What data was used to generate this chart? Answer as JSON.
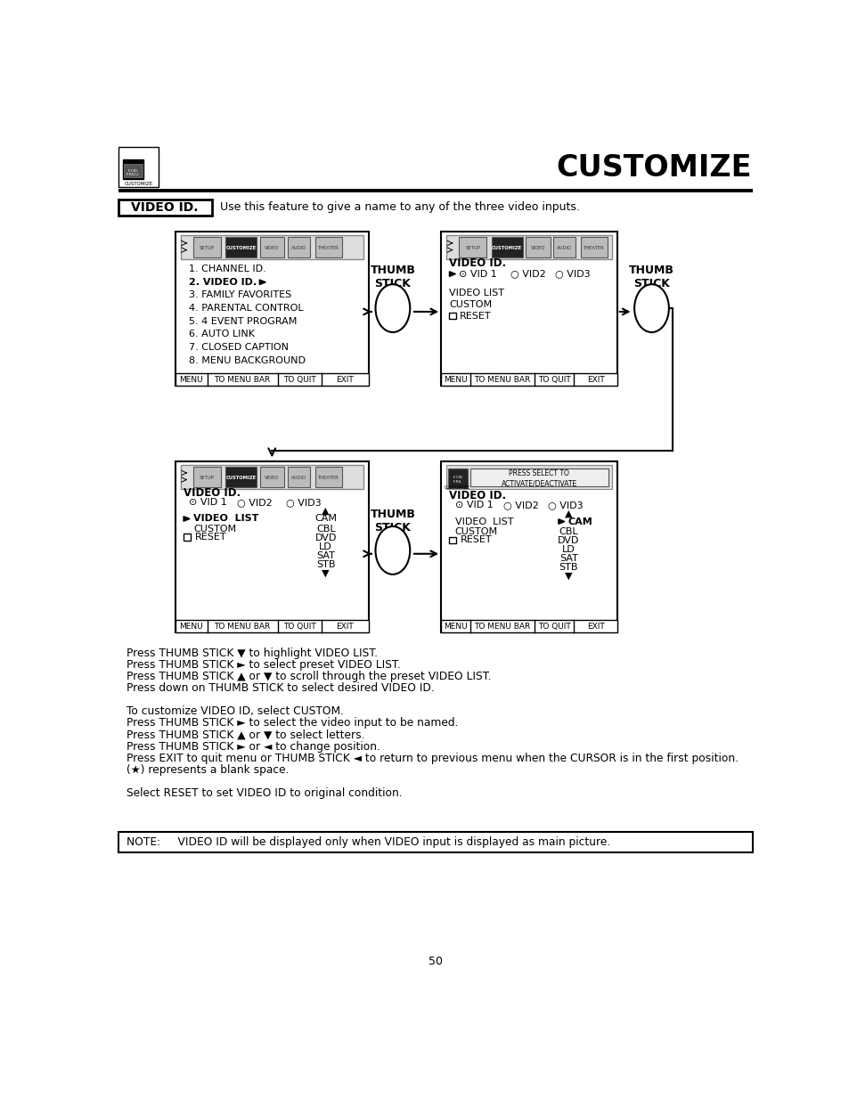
{
  "title": "CUSTOMIZE",
  "page_num": "50",
  "bg_color": "#ffffff",
  "section_label": "VIDEO ID.",
  "section_desc": "Use this feature to give a name to any of the three video inputs.",
  "body_paragraphs": [
    "Press THUMB STICK ▼ to highlight VIDEO LIST.",
    "Press THUMB STICK ► to select preset VIDEO LIST.",
    "Press THUMB STICK ▲ or ▼ to scroll through the preset VIDEO LIST.",
    "Press down on THUMB STICK to select desired VIDEO ID.",
    "",
    "To customize VIDEO ID, select CUSTOM.",
    "Press THUMB STICK ► to select the video input to be named.",
    "Press THUMB STICK ▲ or ▼ to select letters.",
    "Press THUMB STICK ► or ◄ to change position.",
    "Press EXIT to quit menu or THUMB STICK ◄ to return to previous menu when the CURSOR is in the first position.",
    "(★) represents a blank space.",
    "",
    "Select RESET to set VIDEO ID to original condition."
  ],
  "note_text": "NOTE:     VIDEO ID will be displayed only when VIDEO input is displayed as main picture."
}
